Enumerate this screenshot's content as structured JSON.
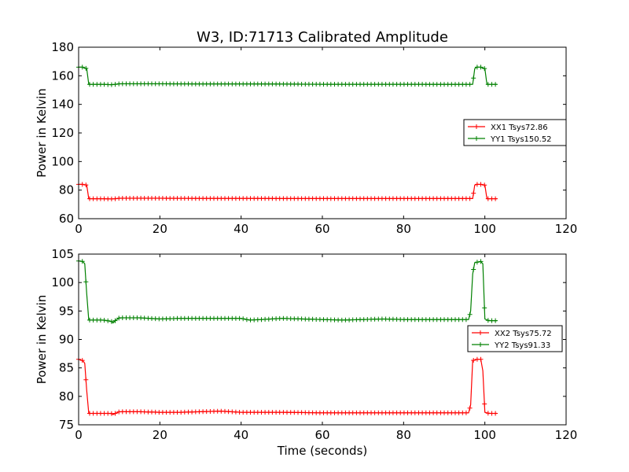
{
  "chart_data": [
    {
      "type": "line",
      "title": "W3, ID:71713 Calibrated Amplitude",
      "xlabel": "",
      "ylabel": "Power in Kelvin",
      "xlim": [
        0,
        120
      ],
      "ylim": [
        60,
        180
      ],
      "xticks": [
        0,
        20,
        40,
        60,
        80,
        100,
        120
      ],
      "yticks": [
        60,
        80,
        100,
        120,
        140,
        160,
        180
      ],
      "grid": false,
      "legend_position": "right",
      "series": [
        {
          "name": "XX1 Tsys72.86",
          "color": "#ff0000",
          "marker": "plus",
          "points": [
            [
              0,
              84
            ],
            [
              1,
              84
            ],
            [
              2,
              83.5
            ],
            [
              2.5,
              74
            ],
            [
              3,
              74
            ],
            [
              6,
              74
            ],
            [
              8,
              73.8
            ],
            [
              9,
              74
            ],
            [
              10,
              74.3
            ],
            [
              20,
              74.3
            ],
            [
              30,
              74.2
            ],
            [
              40,
              74.2
            ],
            [
              50,
              74.1
            ],
            [
              60,
              74.1
            ],
            [
              70,
              74.1
            ],
            [
              80,
              74.1
            ],
            [
              90,
              74.1
            ],
            [
              95,
              74.1
            ],
            [
              97,
              74.1
            ],
            [
              97.5,
              83.5
            ],
            [
              98,
              84
            ],
            [
              99,
              84
            ],
            [
              100,
              83.5
            ],
            [
              100.5,
              74
            ],
            [
              101,
              74
            ],
            [
              103,
              74
            ]
          ]
        },
        {
          "name": "YY1 Tsys150.52",
          "color": "#008000",
          "marker": "plus",
          "points": [
            [
              0,
              166
            ],
            [
              1,
              166
            ],
            [
              2,
              165
            ],
            [
              2.5,
              154
            ],
            [
              3,
              154
            ],
            [
              6,
              154
            ],
            [
              8,
              153.8
            ],
            [
              9,
              154
            ],
            [
              10,
              154.4
            ],
            [
              20,
              154.4
            ],
            [
              30,
              154.3
            ],
            [
              40,
              154.3
            ],
            [
              50,
              154.2
            ],
            [
              60,
              154.1
            ],
            [
              70,
              154.1
            ],
            [
              80,
              154.1
            ],
            [
              90,
              154
            ],
            [
              95,
              154
            ],
            [
              97,
              154
            ],
            [
              97.5,
              165
            ],
            [
              98,
              166
            ],
            [
              99,
              166
            ],
            [
              100,
              165
            ],
            [
              100.5,
              154
            ],
            [
              101,
              154
            ],
            [
              103,
              154
            ]
          ]
        }
      ]
    },
    {
      "type": "line",
      "title": "",
      "xlabel": "Time (seconds)",
      "ylabel": "Power in Kelvin",
      "xlim": [
        0,
        120
      ],
      "ylim": [
        75,
        105
      ],
      "xticks": [
        0,
        20,
        40,
        60,
        80,
        100,
        120
      ],
      "yticks": [
        75,
        80,
        85,
        90,
        95,
        100,
        105
      ],
      "grid": false,
      "legend_position": "right",
      "series": [
        {
          "name": "XX2 Tsys75.72",
          "color": "#ff0000",
          "marker": "plus",
          "points": [
            [
              0,
              86.5
            ],
            [
              1,
              86.3
            ],
            [
              1.5,
              85.8
            ],
            [
              2,
              81
            ],
            [
              2.5,
              77
            ],
            [
              3,
              77
            ],
            [
              6,
              77
            ],
            [
              8,
              77
            ],
            [
              8.5,
              76.8
            ],
            [
              9,
              77
            ],
            [
              10,
              77.3
            ],
            [
              15,
              77.3
            ],
            [
              20,
              77.2
            ],
            [
              25,
              77.2
            ],
            [
              30,
              77.3
            ],
            [
              35,
              77.4
            ],
            [
              40,
              77.2
            ],
            [
              45,
              77.2
            ],
            [
              50,
              77.2
            ],
            [
              60,
              77.1
            ],
            [
              70,
              77.1
            ],
            [
              80,
              77.1
            ],
            [
              90,
              77.1
            ],
            [
              96,
              77.1
            ],
            [
              96.5,
              78.5
            ],
            [
              97,
              86.3
            ],
            [
              98,
              86.5
            ],
            [
              99,
              86.5
            ],
            [
              99.5,
              84.5
            ],
            [
              100,
              77.2
            ],
            [
              101,
              77
            ],
            [
              103,
              77
            ]
          ]
        },
        {
          "name": "YY2 Tsys91.33",
          "color": "#008000",
          "marker": "plus",
          "points": [
            [
              0,
              103.8
            ],
            [
              1,
              103.7
            ],
            [
              1.5,
              103.3
            ],
            [
              2,
              98
            ],
            [
              2.5,
              93.4
            ],
            [
              3,
              93.4
            ],
            [
              6,
              93.4
            ],
            [
              8,
              93.2
            ],
            [
              8.5,
              92.9
            ],
            [
              9,
              93.3
            ],
            [
              10,
              93.8
            ],
            [
              15,
              93.8
            ],
            [
              20,
              93.6
            ],
            [
              25,
              93.7
            ],
            [
              30,
              93.7
            ],
            [
              35,
              93.7
            ],
            [
              40,
              93.7
            ],
            [
              42,
              93.4
            ],
            [
              45,
              93.5
            ],
            [
              50,
              93.7
            ],
            [
              55,
              93.6
            ],
            [
              60,
              93.5
            ],
            [
              65,
              93.4
            ],
            [
              70,
              93.5
            ],
            [
              75,
              93.6
            ],
            [
              80,
              93.5
            ],
            [
              90,
              93.5
            ],
            [
              96,
              93.5
            ],
            [
              96.5,
              95
            ],
            [
              97,
              101.5
            ],
            [
              97.5,
              103.5
            ],
            [
              99,
              103.7
            ],
            [
              99.5,
              103.3
            ],
            [
              100,
              93.6
            ],
            [
              101,
              93.3
            ],
            [
              103,
              93.3
            ]
          ]
        }
      ]
    }
  ]
}
